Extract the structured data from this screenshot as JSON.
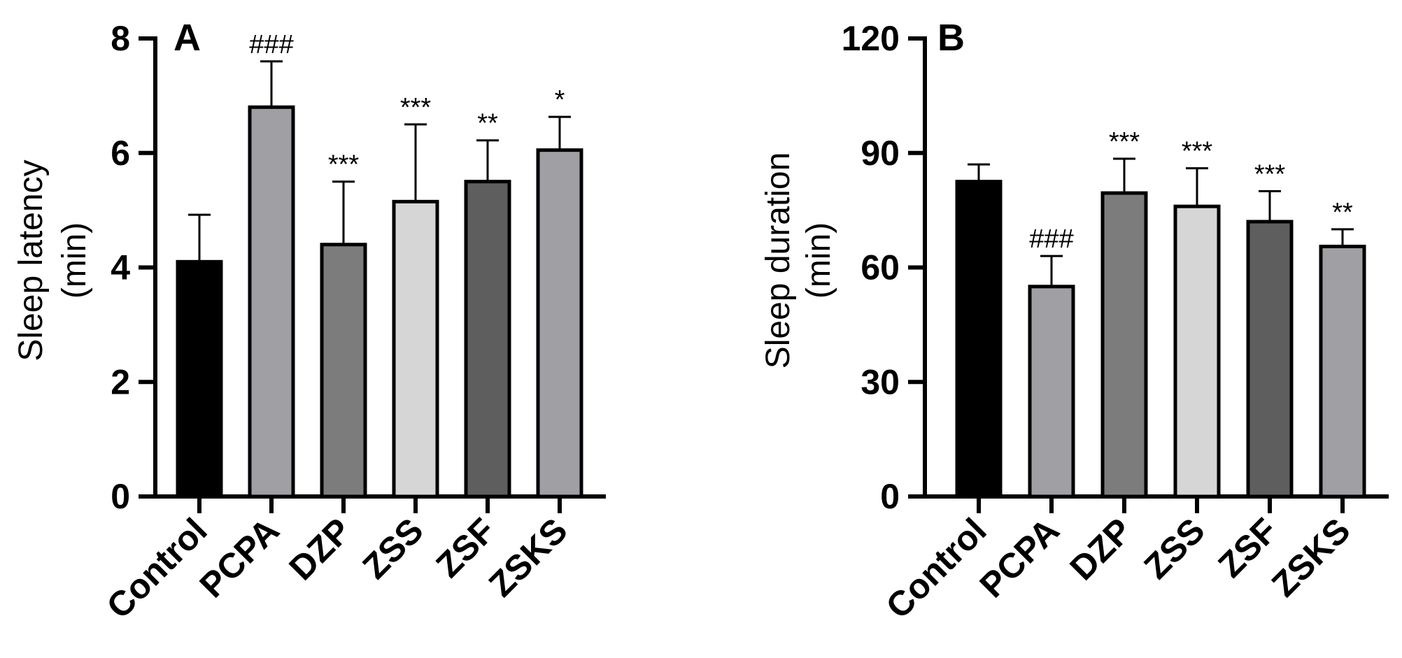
{
  "chart_data": [
    {
      "type": "bar",
      "panel_label": "A",
      "ylabel_line1": "Sleep latency",
      "ylabel_line2": "(min)",
      "ylim": [
        0,
        8
      ],
      "yticks": [
        0,
        2,
        4,
        6,
        8
      ],
      "categories": [
        "Control",
        "PCPA",
        "DZP",
        "ZSS",
        "ZSF",
        "ZSKS"
      ],
      "values": [
        4.1,
        6.8,
        4.4,
        5.15,
        5.5,
        6.05
      ],
      "errors": [
        0.82,
        0.8,
        1.1,
        1.35,
        0.72,
        0.58
      ],
      "significance": [
        "",
        "###",
        "***",
        "***",
        "**",
        "*"
      ],
      "colors": [
        "#000000",
        "#a0a0a4",
        "#7c7c7c",
        "#d6d6d6",
        "#5e5e5e",
        "#a0a0a4"
      ]
    },
    {
      "type": "bar",
      "panel_label": "B",
      "ylabel_line1": "Sleep duration",
      "ylabel_line2": "(min)",
      "ylim": [
        0,
        120
      ],
      "yticks": [
        0,
        30,
        60,
        90,
        120
      ],
      "categories": [
        "Control",
        "PCPA",
        "DZP",
        "ZSS",
        "ZSF",
        "ZSKS"
      ],
      "values": [
        82.5,
        55.0,
        79.5,
        76.0,
        72.0,
        65.5
      ],
      "errors": [
        4.5,
        8.0,
        9.0,
        10.0,
        8.0,
        4.5
      ],
      "significance": [
        "",
        "###",
        "***",
        "***",
        "***",
        "**"
      ],
      "colors": [
        "#000000",
        "#a0a0a4",
        "#7c7c7c",
        "#d6d6d6",
        "#5e5e5e",
        "#a0a0a4"
      ]
    }
  ]
}
